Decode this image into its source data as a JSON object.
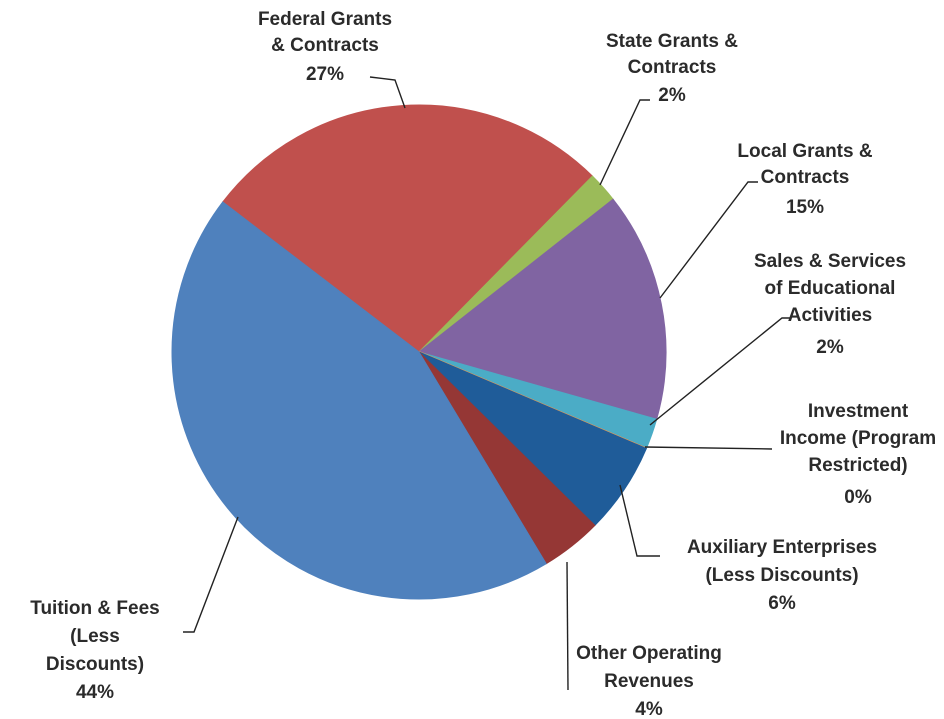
{
  "chart_data": {
    "type": "pie",
    "categories": [
      [
        "Federal Grants",
        "& Contracts"
      ],
      [
        "State Grants &",
        "Contracts"
      ],
      [
        "Local Grants &",
        "Contracts"
      ],
      [
        "Sales & Services",
        "of Educational",
        "Activities"
      ],
      [
        "Investment",
        "Income (Program",
        "Restricted)"
      ],
      [
        "Auxiliary Enterprises",
        "(Less Discounts)"
      ],
      [
        "Other Operating",
        "Revenues"
      ],
      [
        "Tuition & Fees",
        "(Less",
        "Discounts)"
      ]
    ],
    "values": [
      27,
      2,
      15,
      2,
      0,
      6,
      4,
      44
    ],
    "value_labels": [
      "27%",
      "2%",
      "15%",
      "2%",
      "0%",
      "6%",
      "4%",
      "44%"
    ],
    "colors": [
      "#c0504d",
      "#9bbb59",
      "#8064a2",
      "#4bacc6",
      "#f79646",
      "#1f5c99",
      "#953735",
      "#4f81bd"
    ]
  }
}
